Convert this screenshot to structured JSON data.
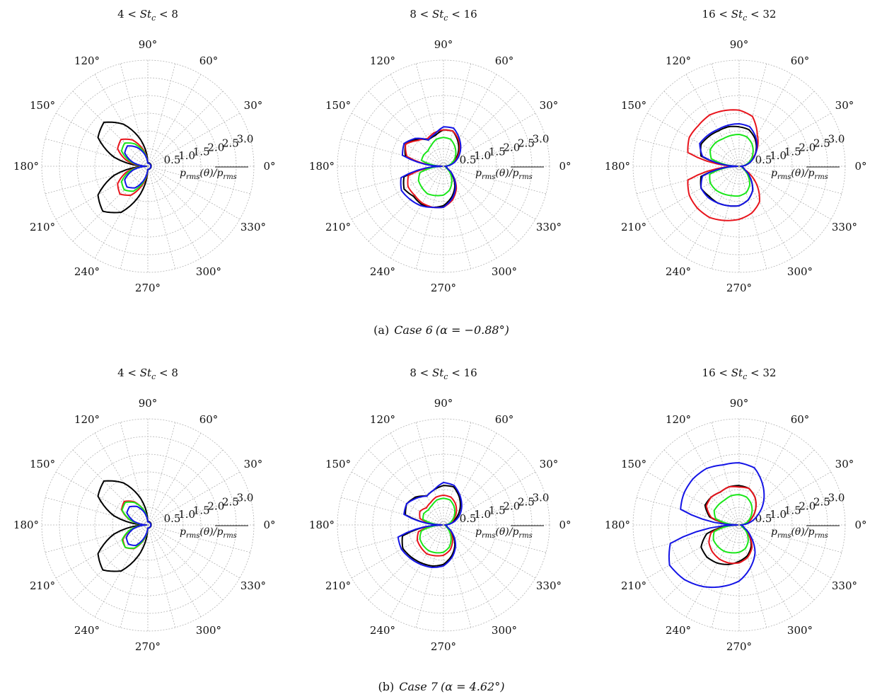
{
  "figure": {
    "subfigures": [
      {
        "label": "(a)",
        "case": "Case 6",
        "alpha": "(α = −0.88°)"
      },
      {
        "label": "(b)",
        "case": "Case 7",
        "alpha": "(α = 4.62°)"
      }
    ]
  },
  "colors": {
    "black": "#000000",
    "red": "#e8141c",
    "green": "#19e619",
    "blue": "#1414e6",
    "grid": "#b4b4b4"
  },
  "chart_data": [
    {
      "type": "polar-line",
      "subfigure": "(a)",
      "title": "4 < St_c < 8",
      "r_ticks": [
        "0.5",
        "1.0",
        "1.5",
        "2.0",
        "2.5",
        "3.0"
      ],
      "rlim": [
        0,
        3.5
      ],
      "theta_ticks": [
        "0°",
        "30°",
        "60°",
        "90°",
        "120°",
        "150°",
        "180°",
        "210°",
        "240°",
        "270°",
        "300°",
        "330°"
      ],
      "radial_label": "p_rms(θ)/p̅_rms",
      "grid": true,
      "series": [
        {
          "color": "#000000",
          "values": {
            "90": 0.12,
            "105": 0.9,
            "120": 1.6,
            "135": 2.05,
            "150": 1.9,
            "165": 1.15,
            "180": 0.05,
            "195": 1.15,
            "210": 1.9,
            "225": 2.1,
            "240": 1.75,
            "255": 0.95,
            "270": 0.1
          }
        },
        {
          "color": "#e8141c",
          "values": {
            "90": 0.1,
            "105": 0.55,
            "120": 1.0,
            "135": 1.25,
            "150": 1.15,
            "165": 0.72,
            "180": 0.05,
            "195": 0.72,
            "210": 1.15,
            "225": 1.3,
            "240": 1.1,
            "255": 0.6,
            "270": 0.1
          }
        },
        {
          "color": "#19e619",
          "values": {
            "90": 0.1,
            "105": 0.48,
            "120": 0.85,
            "135": 1.08,
            "150": 1.0,
            "165": 0.6,
            "180": 0.05,
            "195": 0.62,
            "210": 1.0,
            "225": 1.1,
            "240": 0.95,
            "255": 0.52,
            "270": 0.1
          }
        },
        {
          "color": "#1414e6",
          "values": {
            "90": 0.1,
            "105": 0.42,
            "120": 0.72,
            "135": 0.95,
            "150": 0.88,
            "165": 0.52,
            "180": 0.05,
            "195": 0.52,
            "210": 0.88,
            "225": 0.97,
            "240": 0.82,
            "255": 0.45,
            "270": 0.1
          }
        }
      ]
    },
    {
      "type": "polar-line",
      "subfigure": "(a)",
      "title": "8 < St_c < 16",
      "r_ticks": [
        "0.5",
        "1.0",
        "1.5",
        "2.0",
        "2.5",
        "3.0"
      ],
      "rlim": [
        0,
        3.5
      ],
      "theta_ticks": [
        "0°",
        "30°",
        "60°",
        "90°",
        "120°",
        "150°",
        "180°",
        "210°",
        "240°",
        "270°",
        "300°",
        "330°"
      ],
      "radial_label": "p_rms(θ)/p̅_rms",
      "grid": true,
      "series": [
        {
          "color": "#000000",
          "values": {
            "0": 0.05,
            "30": 0.45,
            "60": 0.95,
            "75": 1.2,
            "90": 1.2,
            "105": 1.05,
            "120": 1.0,
            "135": 1.25,
            "150": 1.45,
            "165": 1.3,
            "180": 0.05,
            "195": 1.35,
            "210": 1.5,
            "225": 1.4,
            "240": 1.45,
            "255": 1.4,
            "270": 1.3,
            "285": 1.05,
            "300": 0.75,
            "315": 0.4,
            "330": 0.15
          }
        },
        {
          "color": "#e8141c",
          "values": {
            "0": 0.05,
            "30": 0.5,
            "60": 1.0,
            "75": 1.2,
            "90": 1.2,
            "105": 1.15,
            "120": 1.05,
            "135": 1.2,
            "150": 1.45,
            "165": 1.25,
            "180": 0.05,
            "195": 1.2,
            "210": 1.35,
            "225": 1.35,
            "240": 1.4,
            "255": 1.4,
            "270": 1.35,
            "285": 1.15,
            "300": 0.85,
            "315": 0.45,
            "330": 0.15
          }
        },
        {
          "color": "#19e619",
          "values": {
            "0": 0.05,
            "30": 0.4,
            "60": 0.75,
            "75": 0.92,
            "90": 0.95,
            "105": 0.92,
            "120": 0.8,
            "135": 0.72,
            "150": 0.75,
            "165": 0.75,
            "180": 0.05,
            "195": 0.8,
            "210": 0.95,
            "225": 1.0,
            "240": 1.05,
            "255": 1.0,
            "270": 0.95,
            "285": 0.8,
            "300": 0.55,
            "315": 0.3,
            "330": 0.1
          }
        },
        {
          "color": "#1414e6",
          "values": {
            "0": 0.05,
            "30": 0.55,
            "60": 1.05,
            "75": 1.3,
            "90": 1.3,
            "105": 1.1,
            "120": 1.0,
            "135": 1.3,
            "150": 1.5,
            "165": 1.4,
            "180": 0.05,
            "195": 1.45,
            "210": 1.6,
            "225": 1.55,
            "240": 1.5,
            "255": 1.4,
            "270": 1.35,
            "285": 1.1,
            "300": 0.8,
            "315": 0.45,
            "330": 0.15
          }
        }
      ]
    },
    {
      "type": "polar-line",
      "subfigure": "(a)",
      "title": "16 < St_c < 32",
      "r_ticks": [
        "0.5",
        "1.0",
        "1.5",
        "2.0",
        "2.5",
        "3.0"
      ],
      "rlim": [
        0,
        3.5
      ],
      "theta_ticks": [
        "0°",
        "30°",
        "60°",
        "90°",
        "120°",
        "150°",
        "180°",
        "210°",
        "240°",
        "270°",
        "300°",
        "330°"
      ],
      "radial_label": "p_rms(θ)/p̅_rms",
      "grid": true,
      "series": [
        {
          "color": "#000000",
          "values": {
            "0": 0.05,
            "30": 0.55,
            "60": 1.05,
            "75": 1.25,
            "90": 1.3,
            "105": 1.35,
            "120": 1.35,
            "135": 1.4,
            "150": 1.45,
            "165": 1.3,
            "180": 0.05,
            "195": 1.3,
            "210": 1.45,
            "225": 1.4,
            "240": 1.4,
            "255": 1.35,
            "270": 1.3,
            "285": 1.15,
            "300": 0.9,
            "315": 0.5,
            "330": 0.2
          }
        },
        {
          "color": "#e8141c",
          "values": {
            "0": 0.05,
            "30": 0.5,
            "60": 1.2,
            "75": 1.7,
            "90": 1.85,
            "105": 1.9,
            "120": 1.95,
            "135": 1.9,
            "150": 1.9,
            "165": 1.75,
            "180": 0.05,
            "195": 1.75,
            "210": 1.9,
            "225": 1.95,
            "240": 1.95,
            "255": 1.85,
            "270": 1.75,
            "285": 1.6,
            "300": 1.35,
            "315": 0.8,
            "330": 0.2
          }
        },
        {
          "color": "#19e619",
          "values": {
            "0": 0.05,
            "30": 0.45,
            "60": 0.85,
            "75": 1.0,
            "90": 1.05,
            "105": 1.05,
            "120": 1.05,
            "135": 1.1,
            "150": 1.1,
            "165": 0.95,
            "180": 0.05,
            "195": 1.0,
            "210": 1.1,
            "225": 1.1,
            "240": 1.05,
            "255": 1.0,
            "270": 0.98,
            "285": 0.9,
            "300": 0.7,
            "315": 0.4,
            "330": 0.15
          }
        },
        {
          "color": "#1414e6",
          "values": {
            "0": 0.05,
            "30": 0.55,
            "60": 1.1,
            "75": 1.35,
            "90": 1.4,
            "105": 1.4,
            "120": 1.4,
            "135": 1.45,
            "150": 1.5,
            "165": 1.25,
            "180": 0.05,
            "195": 1.25,
            "210": 1.45,
            "225": 1.45,
            "240": 1.4,
            "255": 1.35,
            "270": 1.3,
            "285": 1.15,
            "300": 0.9,
            "315": 0.5,
            "330": 0.2
          }
        }
      ]
    },
    {
      "type": "polar-line",
      "subfigure": "(b)",
      "title": "4 < St_c < 8",
      "r_ticks": [
        "0.5",
        "1.0",
        "1.5",
        "2.0",
        "2.5",
        "3.0"
      ],
      "rlim": [
        0,
        3.5
      ],
      "theta_ticks": [
        "0°",
        "30°",
        "60°",
        "90°",
        "120°",
        "150°",
        "180°",
        "210°",
        "240°",
        "270°",
        "300°",
        "330°"
      ],
      "radial_label": "p_rms(θ)/p̅_rms",
      "grid": true,
      "series": [
        {
          "color": "#000000",
          "values": {
            "90": 0.12,
            "105": 0.9,
            "120": 1.6,
            "135": 2.05,
            "150": 1.9,
            "165": 1.15,
            "180": 0.05,
            "195": 1.15,
            "210": 1.9,
            "225": 2.1,
            "240": 1.75,
            "255": 0.95,
            "270": 0.1
          }
        },
        {
          "color": "#e8141c",
          "values": {
            "90": 0.1,
            "105": 0.5,
            "120": 0.88,
            "135": 1.1,
            "150": 1.0,
            "165": 0.6,
            "180": 0.05,
            "195": 0.58,
            "210": 0.95,
            "225": 1.05,
            "240": 0.9,
            "255": 0.5,
            "270": 0.1
          }
        },
        {
          "color": "#19e619",
          "values": {
            "90": 0.1,
            "105": 0.5,
            "120": 0.85,
            "135": 1.05,
            "150": 0.98,
            "165": 0.58,
            "180": 0.05,
            "195": 0.6,
            "210": 0.98,
            "225": 1.05,
            "240": 0.88,
            "255": 0.48,
            "270": 0.1
          }
        },
        {
          "color": "#1414e6",
          "values": {
            "90": 0.1,
            "105": 0.42,
            "120": 0.7,
            "135": 0.85,
            "150": 0.8,
            "165": 0.48,
            "180": 0.05,
            "195": 0.5,
            "210": 0.82,
            "225": 0.9,
            "240": 0.78,
            "255": 0.42,
            "270": 0.1
          }
        }
      ]
    },
    {
      "type": "polar-line",
      "subfigure": "(b)",
      "title": "8 < St_c < 16",
      "r_ticks": [
        "0.5",
        "1.0",
        "1.5",
        "2.0",
        "2.5",
        "3.0"
      ],
      "rlim": [
        0,
        3.5
      ],
      "theta_ticks": [
        "0°",
        "30°",
        "60°",
        "90°",
        "120°",
        "150°",
        "180°",
        "210°",
        "240°",
        "270°",
        "300°",
        "330°"
      ],
      "radial_label": "p_rms(θ)/p̅_rms",
      "grid": true,
      "series": [
        {
          "color": "#000000",
          "values": {
            "0": 0.05,
            "30": 0.5,
            "60": 1.05,
            "75": 1.3,
            "90": 1.3,
            "105": 1.2,
            "120": 1.1,
            "135": 1.3,
            "150": 1.4,
            "165": 1.3,
            "180": 0.05,
            "195": 1.4,
            "210": 1.55,
            "225": 1.5,
            "240": 1.45,
            "255": 1.4,
            "270": 1.3,
            "285": 1.05,
            "300": 0.75,
            "315": 0.4,
            "330": 0.15
          }
        },
        {
          "color": "#e8141c",
          "values": {
            "0": 0.05,
            "30": 0.4,
            "60": 0.8,
            "75": 0.95,
            "90": 0.98,
            "105": 0.95,
            "120": 0.85,
            "135": 0.8,
            "150": 0.9,
            "165": 0.8,
            "180": 0.05,
            "195": 0.85,
            "210": 1.0,
            "225": 1.05,
            "240": 1.1,
            "255": 1.05,
            "270": 1.0,
            "285": 0.85,
            "300": 0.6,
            "315": 0.3,
            "330": 0.1
          }
        },
        {
          "color": "#19e619",
          "values": {
            "0": 0.05,
            "30": 0.35,
            "60": 0.7,
            "75": 0.85,
            "90": 0.88,
            "105": 0.85,
            "120": 0.75,
            "135": 0.7,
            "150": 0.75,
            "165": 0.7,
            "180": 0.05,
            "195": 0.75,
            "210": 0.9,
            "225": 0.95,
            "240": 0.98,
            "255": 0.95,
            "270": 0.9,
            "285": 0.75,
            "300": 0.5,
            "315": 0.25,
            "330": 0.1
          }
        },
        {
          "color": "#1414e6",
          "values": {
            "0": 0.05,
            "30": 0.6,
            "60": 1.1,
            "75": 1.35,
            "90": 1.4,
            "105": 1.2,
            "120": 1.1,
            "135": 1.25,
            "150": 1.4,
            "165": 1.35,
            "180": 0.05,
            "195": 1.55,
            "210": 1.6,
            "225": 1.55,
            "240": 1.5,
            "255": 1.45,
            "270": 1.35,
            "285": 1.1,
            "300": 0.8,
            "315": 0.45,
            "330": 0.15
          }
        }
      ]
    },
    {
      "type": "polar-line",
      "subfigure": "(b)",
      "title": "16 < St_c < 32",
      "r_ticks": [
        "0.5",
        "1.0",
        "1.5",
        "2.0",
        "2.5",
        "3.0"
      ],
      "rlim": [
        0,
        3.5
      ],
      "theta_ticks": [
        "0°",
        "30°",
        "60°",
        "90°",
        "120°",
        "150°",
        "180°",
        "210°",
        "240°",
        "270°",
        "300°",
        "330°"
      ],
      "radial_label": "p_rms(θ)/p̅_rms",
      "grid": true,
      "series": [
        {
          "color": "#000000",
          "values": {
            "0": 0.05,
            "30": 0.5,
            "60": 1.05,
            "75": 1.25,
            "90": 1.3,
            "105": 1.3,
            "120": 1.25,
            "135": 1.3,
            "150": 1.3,
            "165": 1.0,
            "180": 0.05,
            "195": 1.1,
            "210": 1.45,
            "225": 1.5,
            "240": 1.45,
            "255": 1.35,
            "270": 1.2,
            "285": 1.05,
            "300": 0.8,
            "315": 0.45,
            "330": 0.15
          }
        },
        {
          "color": "#e8141c",
          "values": {
            "0": 0.05,
            "30": 0.5,
            "60": 1.05,
            "75": 1.25,
            "90": 1.25,
            "105": 1.3,
            "120": 1.25,
            "135": 1.3,
            "150": 1.25,
            "165": 0.95,
            "180": 0.05,
            "195": 0.95,
            "210": 1.15,
            "225": 1.25,
            "240": 1.3,
            "255": 1.3,
            "270": 1.25,
            "285": 1.1,
            "300": 0.85,
            "315": 0.45,
            "330": 0.15
          }
        },
        {
          "color": "#19e619",
          "values": {
            "0": 0.05,
            "30": 0.4,
            "60": 0.8,
            "75": 0.95,
            "90": 1.0,
            "105": 1.0,
            "120": 0.95,
            "135": 0.95,
            "150": 0.95,
            "165": 0.8,
            "180": 0.05,
            "195": 0.85,
            "210": 0.98,
            "225": 1.0,
            "240": 1.0,
            "255": 0.95,
            "270": 0.9,
            "285": 0.8,
            "300": 0.6,
            "315": 0.35,
            "330": 0.1
          }
        },
        {
          "color": "#1414e6",
          "values": {
            "0": 0.05,
            "30": 0.75,
            "60": 1.55,
            "75": 1.95,
            "90": 2.05,
            "105": 2.05,
            "120": 2.15,
            "135": 2.15,
            "150": 2.1,
            "165": 2.0,
            "180": 0.05,
            "195": 2.35,
            "210": 2.65,
            "225": 2.55,
            "240": 2.35,
            "255": 2.1,
            "270": 1.85,
            "285": 1.45,
            "300": 1.05,
            "315": 0.55,
            "330": 0.2
          }
        }
      ]
    }
  ]
}
